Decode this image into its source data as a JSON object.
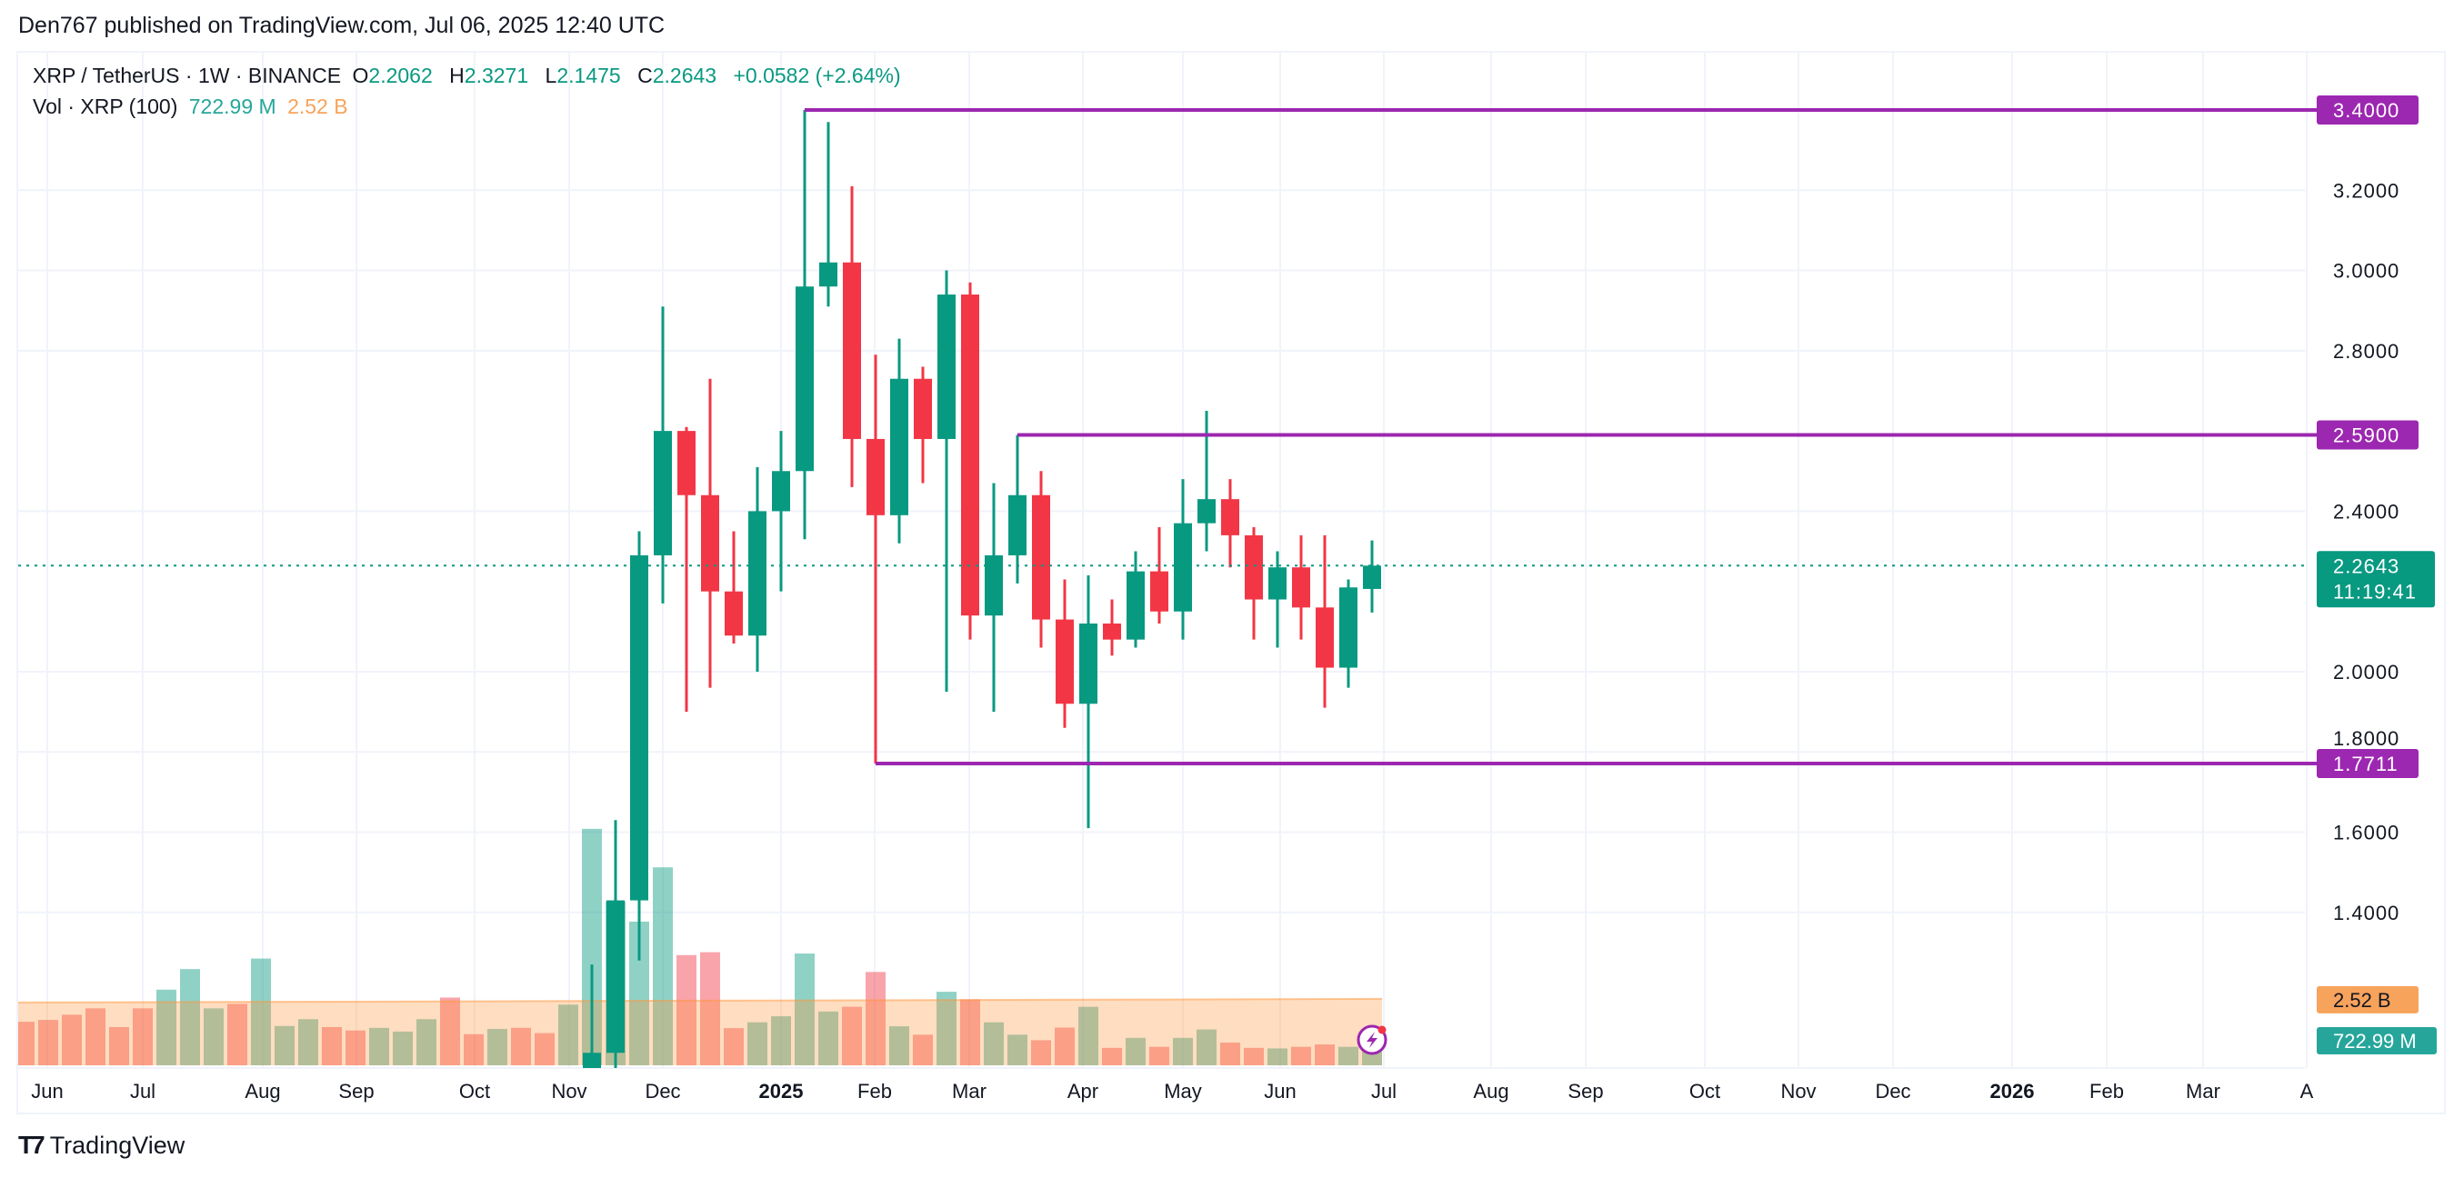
{
  "header": {
    "published": "Den767 published on TradingView.com, Jul 06, 2025 12:40 UTC"
  },
  "legend": {
    "symbol": "XRP / TetherUS · 1W · BINANCE",
    "o_label": "O",
    "o": "2.2062",
    "h_label": "H",
    "h": "2.3271",
    "l_label": "L",
    "l": "2.1475",
    "c_label": "C",
    "c": "2.2643",
    "change": "+0.0582 (+2.64%)",
    "vol_title": "Vol · XRP (100)",
    "vol_value": "722.99 M",
    "vol_ma": "2.52 B"
  },
  "footer": {
    "brand": "TradingView",
    "logo_icon": "tradingview-logo-icon"
  },
  "colors": {
    "up": "#089981",
    "down": "#f23645",
    "level": "#9c27b0",
    "vol_ma": "#f7a35c",
    "vol_label": "#26a69a"
  },
  "chart_data": {
    "type": "candlestick",
    "interval": "1W",
    "ylim": [
      1.2,
      3.5
    ],
    "grid": true,
    "y_ticks": [
      "3.2000",
      "3.0000",
      "2.8000",
      "2.4000",
      "2.0000",
      "1.8000",
      "1.6000",
      "1.4000"
    ],
    "x_ticks": [
      "Jun",
      "Jul",
      "Aug",
      "Sep",
      "Oct",
      "Nov",
      "Dec",
      "2025",
      "Feb",
      "Mar",
      "Apr",
      "May",
      "Jun",
      "Jul",
      "Aug",
      "Sep",
      "Oct",
      "Nov",
      "Dec",
      "2026",
      "Feb",
      "Mar",
      "A"
    ],
    "levels": [
      {
        "price": 3.4,
        "label": "3.4000"
      },
      {
        "price": 2.59,
        "label": "2.5900"
      },
      {
        "price": 1.7711,
        "label": "1.7711"
      }
    ],
    "last_price": {
      "price": 2.2643,
      "label": "2.2643",
      "countdown": "11:19:41"
    },
    "volume_labels": {
      "ma": "2.52 B",
      "last": "722.99 M"
    },
    "candles_ohlc": [
      [
        0.59,
        1.27,
        0.55,
        1.05
      ],
      [
        1.05,
        1.63,
        1.0,
        1.43
      ],
      [
        1.43,
        2.35,
        1.28,
        2.29
      ],
      [
        2.29,
        2.91,
        2.17,
        2.6
      ],
      [
        2.6,
        2.61,
        1.9,
        2.44
      ],
      [
        2.44,
        2.73,
        1.96,
        2.2
      ],
      [
        2.2,
        2.35,
        2.07,
        2.09
      ],
      [
        2.09,
        2.51,
        2.0,
        2.4
      ],
      [
        2.4,
        2.6,
        2.2,
        2.5
      ],
      [
        2.5,
        3.4,
        2.33,
        2.96
      ],
      [
        2.96,
        3.37,
        2.91,
        3.02
      ],
      [
        3.02,
        3.21,
        2.46,
        2.58
      ],
      [
        2.58,
        2.79,
        1.7711,
        2.39
      ],
      [
        2.39,
        2.83,
        2.32,
        2.73
      ],
      [
        2.73,
        2.76,
        2.47,
        2.58
      ],
      [
        2.58,
        3.0,
        1.95,
        2.94
      ],
      [
        2.94,
        2.97,
        2.08,
        2.14
      ],
      [
        2.14,
        2.47,
        1.9,
        2.29
      ],
      [
        2.29,
        2.59,
        2.22,
        2.44
      ],
      [
        2.44,
        2.5,
        2.06,
        2.13
      ],
      [
        2.13,
        2.23,
        1.86,
        1.92
      ],
      [
        1.92,
        2.24,
        1.61,
        2.12
      ],
      [
        2.12,
        2.18,
        2.04,
        2.08
      ],
      [
        2.08,
        2.3,
        2.06,
        2.25
      ],
      [
        2.25,
        2.36,
        2.12,
        2.15
      ],
      [
        2.15,
        2.48,
        2.08,
        2.37
      ],
      [
        2.37,
        2.65,
        2.3,
        2.43
      ],
      [
        2.43,
        2.48,
        2.26,
        2.34
      ],
      [
        2.34,
        2.36,
        2.08,
        2.18
      ],
      [
        2.18,
        2.3,
        2.06,
        2.26
      ],
      [
        2.26,
        2.34,
        2.08,
        2.16
      ],
      [
        2.16,
        2.34,
        1.91,
        2.01
      ],
      [
        2.01,
        2.23,
        1.96,
        2.21
      ],
      [
        2.2062,
        2.3271,
        2.1475,
        2.2643
      ]
    ],
    "earlier_volumes_billion": [
      [
        1.65,
        "down"
      ],
      [
        1.72,
        "down"
      ],
      [
        1.92,
        "down"
      ],
      [
        2.16,
        "down"
      ],
      [
        1.45,
        "down"
      ],
      [
        2.16,
        "down"
      ],
      [
        2.87,
        "up"
      ],
      [
        3.65,
        "up"
      ],
      [
        2.16,
        "up"
      ],
      [
        2.33,
        "down"
      ],
      [
        4.05,
        "up"
      ],
      [
        1.49,
        "up"
      ],
      [
        1.75,
        "up"
      ],
      [
        1.45,
        "down"
      ],
      [
        1.32,
        "down"
      ],
      [
        1.42,
        "up"
      ],
      [
        1.28,
        "up"
      ],
      [
        1.75,
        "up"
      ],
      [
        2.57,
        "down"
      ],
      [
        1.18,
        "down"
      ],
      [
        1.38,
        "up"
      ],
      [
        1.42,
        "down"
      ],
      [
        1.22,
        "down"
      ],
      [
        2.3,
        "up"
      ]
    ],
    "candle_volumes_billion": [
      8.97,
      6.22,
      5.45,
      7.51,
      4.18,
      4.29,
      1.41,
      1.63,
      1.86,
      4.24,
      2.04,
      2.22,
      3.54,
      1.48,
      1.16,
      2.79,
      2.5,
      1.63,
      1.16,
      0.95,
      1.43,
      2.22,
      0.66,
      1.04,
      0.7,
      1.04,
      1.36,
      0.86,
      0.66,
      0.64,
      0.7,
      0.79,
      0.7,
      0.72299
    ],
    "volume_ma_billion": 2.52
  }
}
